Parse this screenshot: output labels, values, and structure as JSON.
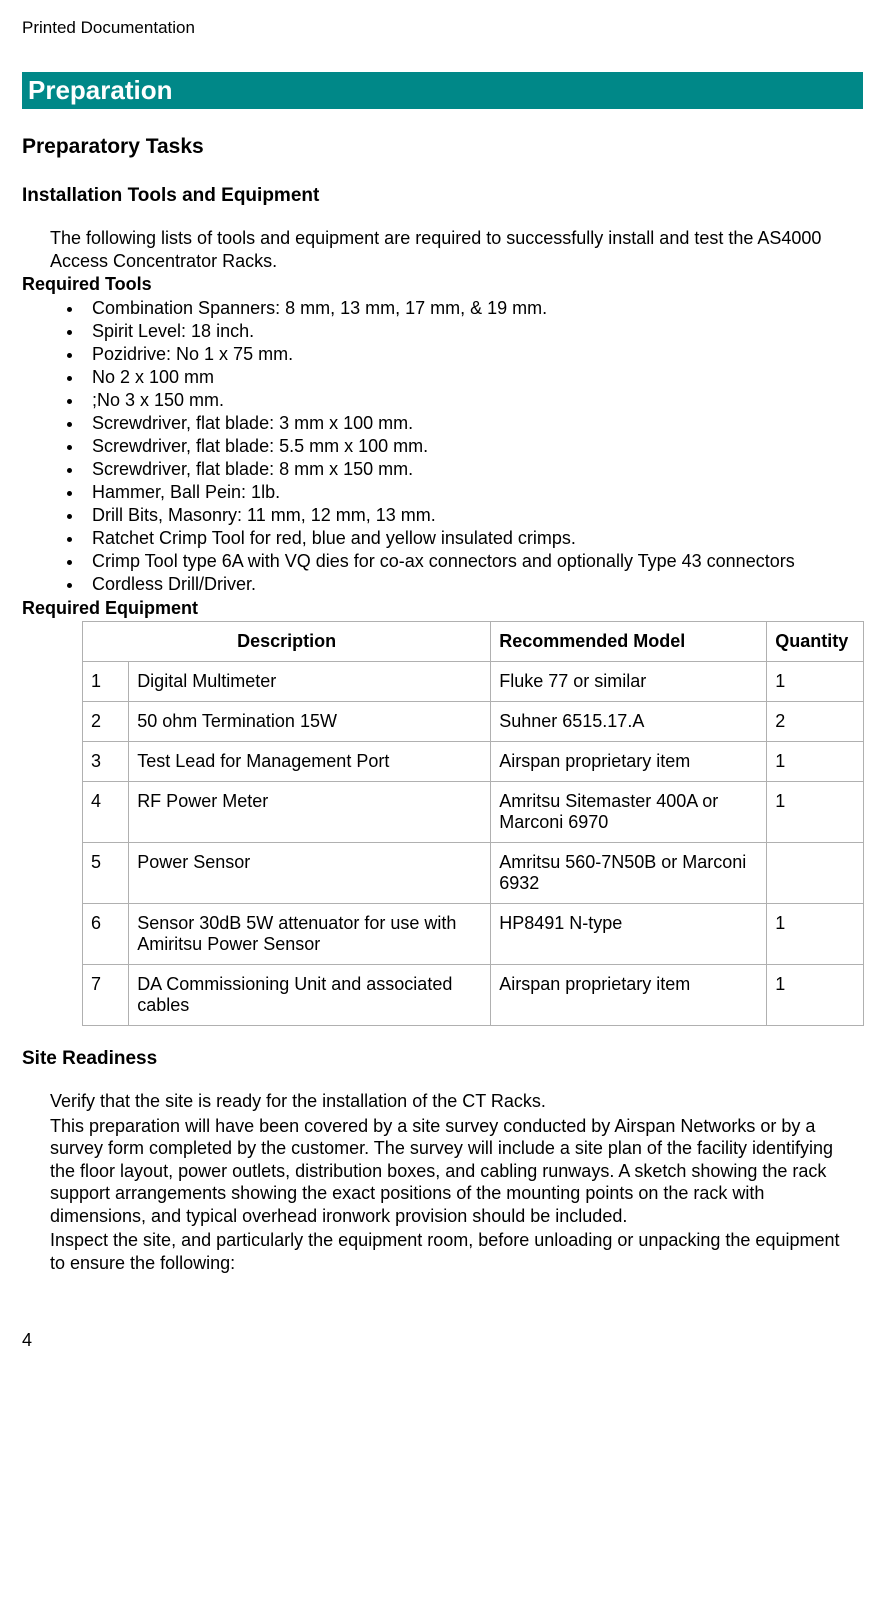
{
  "doc_header": "Printed Documentation",
  "section_title": "Preparation",
  "h2_prep_tasks": "Preparatory Tasks",
  "h3_install_tools": "Installation Tools and Equipment",
  "intro_text": "The following lists of tools and equipment are required to successfully install and test the AS4000 Access Concentrator Racks.",
  "required_tools_heading": "Required Tools",
  "tools": [
    "Combination Spanners: 8 mm, 13 mm, 17 mm, & 19 mm.",
    "Spirit Level: 18 inch.",
    "Pozidrive: No 1 x 75 mm.",
    "No 2 x 100 mm",
    ";No 3 x 150 mm.",
    "Screwdriver, flat blade: 3 mm x 100 mm.",
    "Screwdriver, flat blade: 5.5 mm x 100 mm.",
    "Screwdriver, flat blade: 8 mm x 150 mm.",
    "Hammer, Ball Pein: 1lb.",
    "Drill Bits, Masonry: 11 mm, 12 mm, 13 mm.",
    "Ratchet Crimp Tool for red, blue and yellow insulated crimps.",
    "Crimp Tool type 6A with VQ dies for co-ax connectors and optionally Type 43 connectors",
    "Cordless Drill/Driver."
  ],
  "required_equipment_heading": "Required Equipment",
  "table": {
    "headers": {
      "description": "Description",
      "model": "Recommended Model",
      "quantity": "Quantity"
    },
    "rows": [
      {
        "n": "1",
        "desc": "Digital Multimeter",
        "model": "Fluke 77 or similar",
        "qty": "1"
      },
      {
        "n": "2",
        "desc": "50 ohm Termination 15W",
        "model": "Suhner 6515.17.A",
        "qty": "2"
      },
      {
        "n": "3",
        "desc": "Test Lead for Management Port",
        "model": "Airspan proprietary item",
        "qty": "1"
      },
      {
        "n": "4",
        "desc": "RF Power Meter",
        "model": "Amritsu Sitemaster 400A or Marconi 6970",
        "qty": "1"
      },
      {
        "n": "5",
        "desc": "Power Sensor",
        "model": "Amritsu 560-7N50B or Marconi 6932",
        "qty": ""
      },
      {
        "n": "6",
        "desc": "Sensor 30dB 5W attenuator for use with Amiritsu Power Sensor",
        "model": "HP8491 N-type",
        "qty": "1"
      },
      {
        "n": "7",
        "desc": "DA Commissioning Unit and associated cables",
        "model": "Airspan proprietary item",
        "qty": "1"
      }
    ]
  },
  "h3_site_readiness": "Site Readiness",
  "site_para1": "Verify that the site is ready for the installation of the CT Racks.",
  "site_para2": "This preparation will have been covered by a site survey conducted by Airspan Networks or by a survey form completed by the customer. The survey will include a site plan of the facility identifying the floor layout, power outlets, distribution boxes, and cabling runways. A sketch showing the rack support arrangements showing the exact positions of the mounting points on the rack with dimensions, and typical overhead ironwork provision should be included.",
  "site_para3": "Inspect the site, and particularly the equipment room, before unloading or unpacking the equipment to ensure the following:",
  "page_number": "4"
}
